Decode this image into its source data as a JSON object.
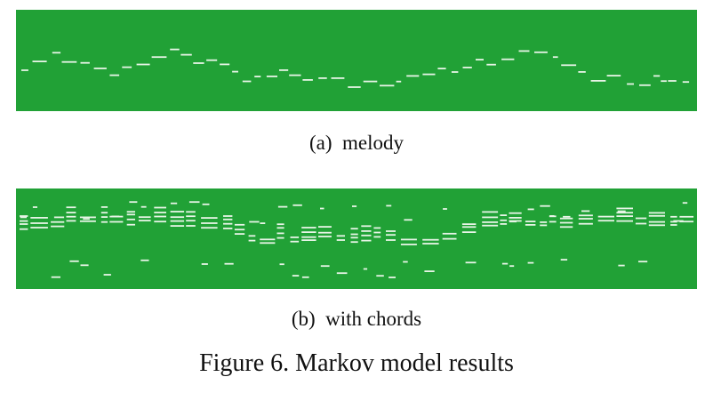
{
  "colors": {
    "background": "#21a136",
    "note": "#e7f4e6"
  },
  "panels": [
    {
      "id": "a",
      "label": "(a)",
      "name": "melody"
    },
    {
      "id": "b",
      "label": "(b)",
      "name": "with chords"
    }
  ],
  "figure": {
    "label": "Figure 6.",
    "title": "Markov model results"
  }
}
